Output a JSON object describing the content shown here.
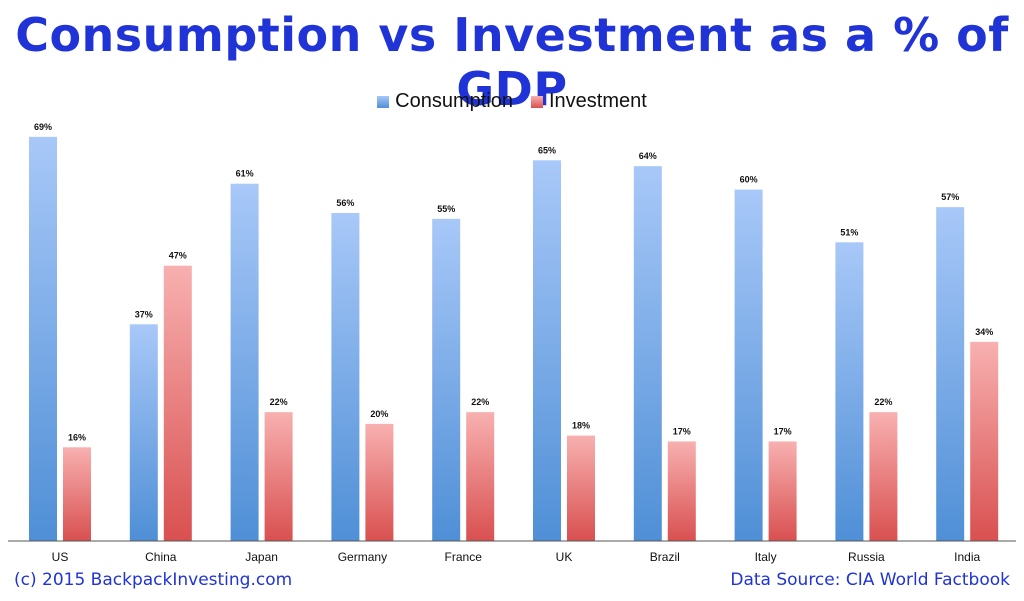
{
  "title": "Consumption vs Investment as a % of GDP",
  "footer": {
    "left": "(c) 2015 BackpackInvesting.com",
    "right": "Data Source:  CIA World Factbook"
  },
  "chart_data": {
    "type": "bar",
    "categories": [
      "US",
      "China",
      "Japan",
      "Germany",
      "France",
      "UK",
      "Brazil",
      "Italy",
      "Russia",
      "India"
    ],
    "series": [
      {
        "name": "Consumption",
        "values": [
          69,
          37,
          61,
          56,
          55,
          65,
          64,
          60,
          51,
          57
        ],
        "labels": [
          "69%",
          "37%",
          "61%",
          "56%",
          "55%",
          "65%",
          "64%",
          "60%",
          "51%",
          "57%"
        ],
        "color_top": "#a8c8f8",
        "color_bottom": "#4f8fd6"
      },
      {
        "name": "Investment",
        "values": [
          16,
          47,
          22,
          20,
          22,
          18,
          17,
          17,
          22,
          34
        ],
        "labels": [
          "16%",
          "47%",
          "22%",
          "20%",
          "22%",
          "18%",
          "17%",
          "17%",
          "22%",
          "34%"
        ],
        "color_top": "#f8b0b0",
        "color_bottom": "#d95050"
      }
    ],
    "ylim": [
      0,
      70
    ],
    "grid": false,
    "legend_position": "top-center"
  }
}
